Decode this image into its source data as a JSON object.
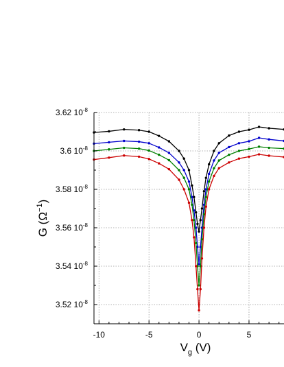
{
  "chart_data": {
    "type": "line",
    "title": "",
    "grid": true,
    "xlabel": {
      "main": "V",
      "sub": "g",
      "rest": " (V)"
    },
    "ylabel": {
      "main": "G (Ω",
      "sup": "−1",
      "rest": ")"
    },
    "xlim": [
      -10.5,
      8.5
    ],
    "ylim": [
      3.51e-08,
      3.62e-08
    ],
    "xticks": [
      {
        "value": -10,
        "label": "-10"
      },
      {
        "value": -5,
        "label": "-5"
      },
      {
        "value": 0,
        "label": "0"
      },
      {
        "value": 5,
        "label": "5"
      }
    ],
    "yticks": [
      {
        "value": 3.52e-08,
        "mantissa": "3.52 10",
        "exp": "-8"
      },
      {
        "value": 3.54e-08,
        "mantissa": "3.54 10",
        "exp": "-8"
      },
      {
        "value": 3.56e-08,
        "mantissa": "3.56 10",
        "exp": "-8"
      },
      {
        "value": 3.58e-08,
        "mantissa": "3.58 10",
        "exp": "-8"
      },
      {
        "value": 3.6e-08,
        "mantissa": "3.6 10",
        "exp": "-8"
      },
      {
        "value": 3.62e-08,
        "mantissa": "3.62 10",
        "exp": "-8"
      }
    ],
    "series": [
      {
        "color": "#000000",
        "x": [
          -10.5,
          -9,
          -7.5,
          -6,
          -5,
          -4,
          -3,
          -2,
          -1.5,
          -1,
          -0.7,
          -0.5,
          -0.3,
          -0.15,
          0,
          0.15,
          0.3,
          0.5,
          0.7,
          1,
          1.5,
          2,
          3,
          4,
          5,
          6,
          7,
          8.5
        ],
        "y": [
          3.6096e-08,
          3.6102e-08,
          3.6112e-08,
          3.6108e-08,
          3.61e-08,
          3.6078e-08,
          3.605e-08,
          3.6e-08,
          3.596e-08,
          3.59e-08,
          3.582e-08,
          3.576e-08,
          3.568e-08,
          3.562e-08,
          3.558e-08,
          3.564e-08,
          3.57e-08,
          3.579e-08,
          3.586e-08,
          3.593e-08,
          3.6e-08,
          3.604e-08,
          3.608e-08,
          3.61e-08,
          3.611e-08,
          3.6125e-08,
          3.6118e-08,
          3.6112e-08
        ]
      },
      {
        "color": "#0000cc",
        "x": [
          -10.5,
          -9,
          -7.5,
          -6,
          -5,
          -4,
          -3,
          -2,
          -1.5,
          -1,
          -0.7,
          -0.5,
          -0.3,
          -0.15,
          0,
          0.15,
          0.3,
          0.5,
          0.7,
          1,
          1.5,
          2,
          3,
          4,
          5,
          6,
          7,
          8.5
        ],
        "y": [
          3.6038e-08,
          3.6045e-08,
          3.6052e-08,
          3.6048e-08,
          3.604e-08,
          3.6018e-08,
          3.599e-08,
          3.594e-08,
          3.59e-08,
          3.584e-08,
          3.576e-08,
          3.569e-08,
          3.56e-08,
          3.55e-08,
          3.541e-08,
          3.55e-08,
          3.56e-08,
          3.572e-08,
          3.58e-08,
          3.588e-08,
          3.595e-08,
          3.599e-08,
          3.602e-08,
          3.604e-08,
          3.605e-08,
          3.6068e-08,
          3.606e-08,
          3.6052e-08
        ]
      },
      {
        "color": "#008000",
        "x": [
          -10.5,
          -9,
          -7.5,
          -6,
          -5,
          -4,
          -3,
          -2,
          -1.5,
          -1,
          -0.7,
          -0.5,
          -0.3,
          -0.15,
          0,
          0.15,
          0.3,
          0.5,
          0.7,
          1,
          1.5,
          2,
          3,
          4,
          5,
          6,
          7,
          8.5
        ],
        "y": [
          3.6e-08,
          3.6008e-08,
          3.6016e-08,
          3.6012e-08,
          3.6002e-08,
          3.598e-08,
          3.5952e-08,
          3.59e-08,
          3.586e-08,
          3.58e-08,
          3.572e-08,
          3.564e-08,
          3.552e-08,
          3.54e-08,
          3.53e-08,
          3.54e-08,
          3.554e-08,
          3.567e-08,
          3.576e-08,
          3.584e-08,
          3.591e-08,
          3.595e-08,
          3.598e-08,
          3.6e-08,
          3.601e-08,
          3.6022e-08,
          3.6016e-08,
          3.6012e-08
        ]
      },
      {
        "color": "#cc0000",
        "x": [
          -10.5,
          -9,
          -7.5,
          -6,
          -5,
          -4,
          -3,
          -2,
          -1.5,
          -1,
          -0.7,
          -0.5,
          -0.3,
          -0.15,
          0,
          0.15,
          0.3,
          0.5,
          0.7,
          1,
          1.5,
          2,
          3,
          4,
          5,
          6,
          7,
          8.5
        ],
        "y": [
          3.5955e-08,
          3.5965e-08,
          3.5976e-08,
          3.597e-08,
          3.5958e-08,
          3.5935e-08,
          3.5905e-08,
          3.585e-08,
          3.58e-08,
          3.573e-08,
          3.564e-08,
          3.555e-08,
          3.54e-08,
          3.528e-08,
          3.517e-08,
          3.528e-08,
          3.544e-08,
          3.56e-08,
          3.571e-08,
          3.58e-08,
          3.587e-08,
          3.591e-08,
          3.594e-08,
          3.596e-08,
          3.597e-08,
          3.5982e-08,
          3.5975e-08,
          3.5968e-08
        ]
      }
    ]
  }
}
